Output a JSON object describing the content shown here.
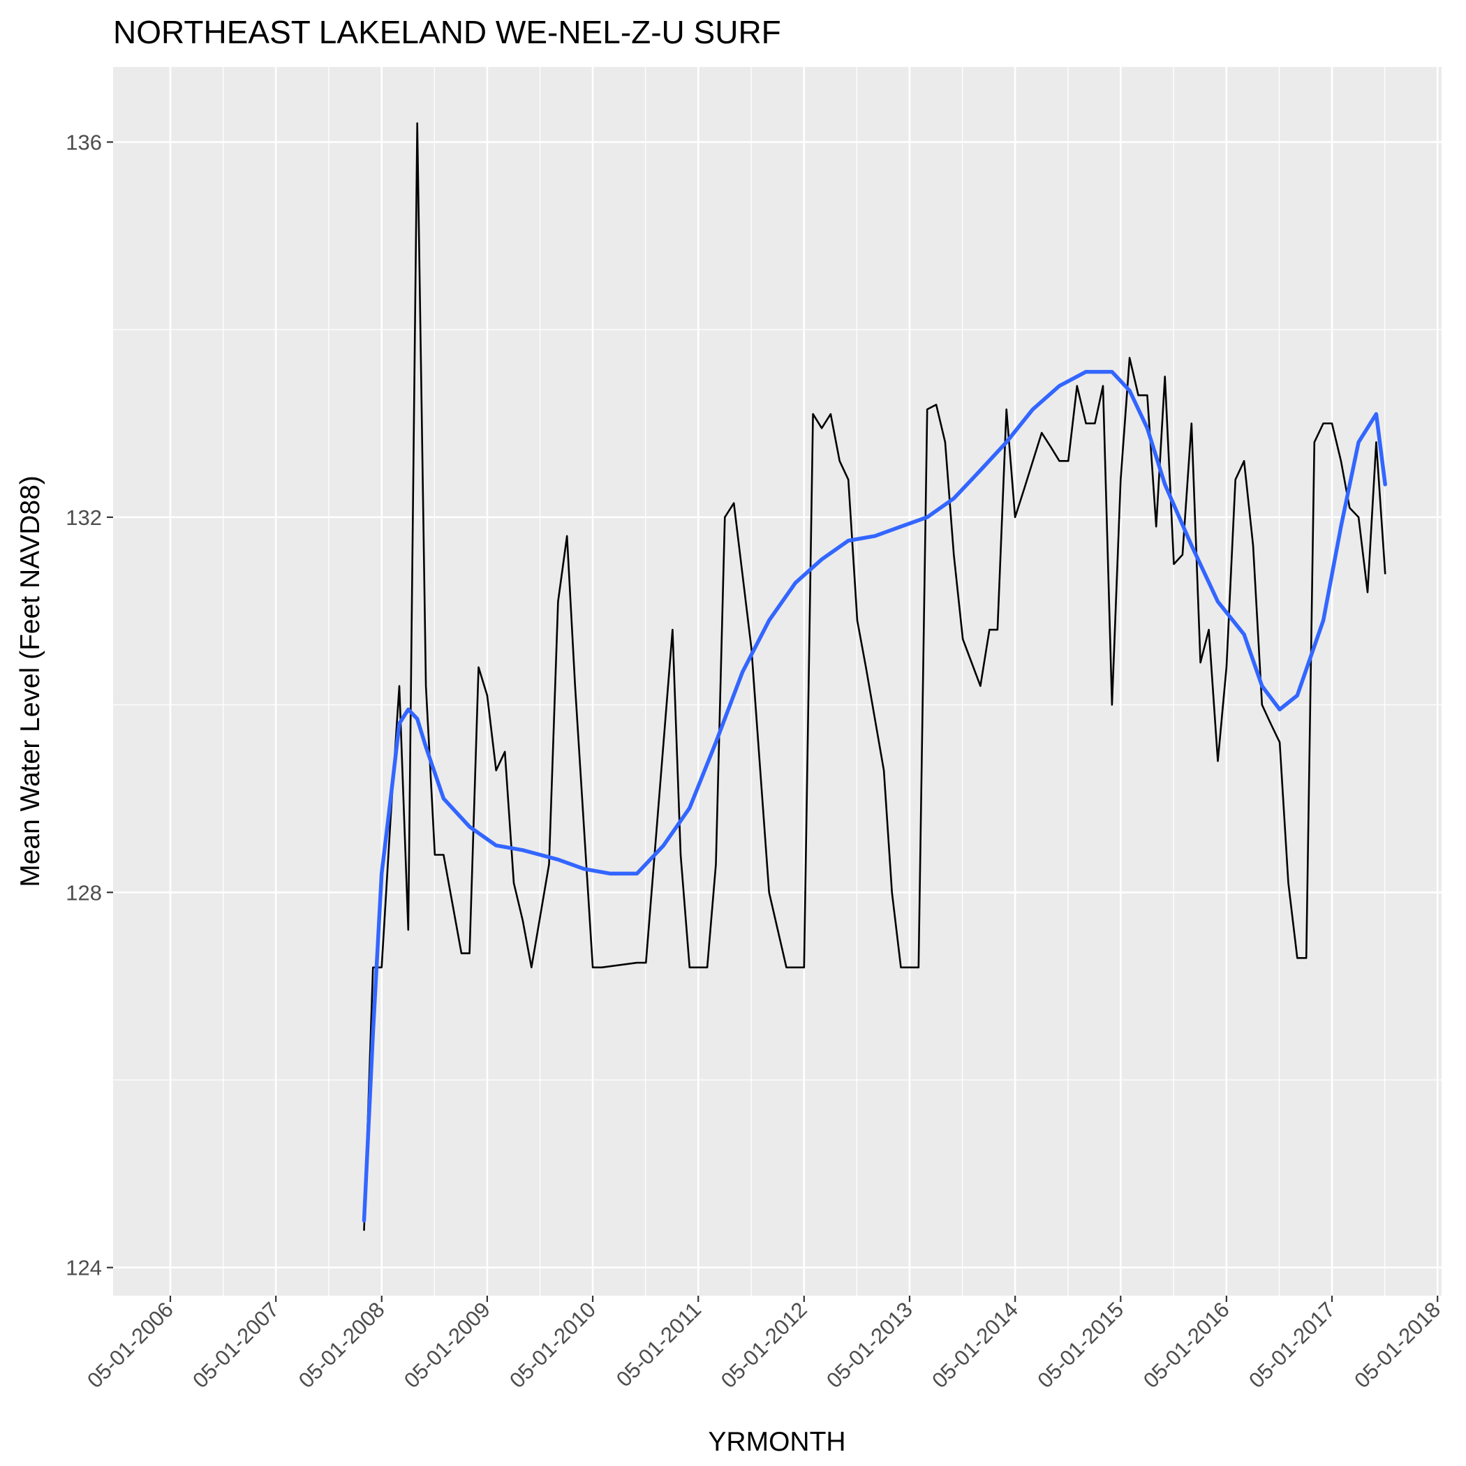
{
  "chart_data": {
    "type": "line",
    "title": "NORTHEAST LAKELAND WE-NEL-Z-U SURF",
    "xlabel": "YRMONTH",
    "ylabel": "Mean Water Level (Feet NAVD88)",
    "xlim": [
      "2005-10-15",
      "2018-05-15"
    ],
    "ylim": [
      123.7,
      136.8
    ],
    "x_ticks": [
      "05-01-2006",
      "05-01-2007",
      "05-01-2008",
      "05-01-2009",
      "05-01-2010",
      "05-01-2011",
      "05-01-2012",
      "05-01-2013",
      "05-01-2014",
      "05-01-2015",
      "05-01-2016",
      "05-01-2017",
      "05-01-2018"
    ],
    "y_ticks": [
      124,
      128,
      132,
      136
    ],
    "grid": true,
    "colors": {
      "panel": "#ebebeb",
      "grid": "#ffffff",
      "series": "#000000",
      "smooth": "#3366ff"
    },
    "series": [
      {
        "style": "line",
        "x": [
          "2008-03-01",
          "2008-04-01",
          "2008-05-01",
          "2008-06-01",
          "2008-07-01",
          "2008-08-01",
          "2008-09-01",
          "2008-10-01",
          "2008-11-01",
          "2008-12-01",
          "2009-02-01",
          "2009-03-01",
          "2009-04-01",
          "2009-05-01",
          "2009-06-01",
          "2009-07-01",
          "2009-08-01",
          "2009-09-01",
          "2009-10-01",
          "2009-12-01",
          "2010-01-01",
          "2010-02-01",
          "2010-03-01",
          "2010-05-01",
          "2010-06-01",
          "2010-10-01",
          "2010-11-01",
          "2011-02-01",
          "2011-03-01",
          "2011-04-01",
          "2011-06-01",
          "2011-07-01",
          "2011-08-01",
          "2011-09-01",
          "2011-11-01",
          "2012-01-01",
          "2012-03-01",
          "2012-05-01",
          "2012-06-01",
          "2012-07-01",
          "2012-08-01",
          "2012-09-01",
          "2012-10-01",
          "2012-11-01",
          "2012-12-01",
          "2013-02-01",
          "2013-03-01",
          "2013-04-01",
          "2013-06-01",
          "2013-07-01",
          "2013-08-01",
          "2013-09-01",
          "2013-10-01",
          "2013-11-01",
          "2014-01-01",
          "2014-02-01",
          "2014-03-01",
          "2014-04-01",
          "2014-05-01",
          "2014-06-01",
          "2014-08-01",
          "2014-09-01",
          "2014-10-01",
          "2014-11-01",
          "2014-12-01",
          "2015-01-01",
          "2015-02-01",
          "2015-03-01",
          "2015-04-01",
          "2015-05-01",
          "2015-06-01",
          "2015-07-01",
          "2015-08-01",
          "2015-09-01",
          "2015-10-01",
          "2015-11-01",
          "2015-12-01",
          "2016-01-01",
          "2016-02-01",
          "2016-03-01",
          "2016-04-01",
          "2016-05-01",
          "2016-06-01",
          "2016-07-01",
          "2016-08-01",
          "2016-09-01",
          "2016-10-01",
          "2016-11-01",
          "2016-12-01",
          "2017-01-01",
          "2017-02-01",
          "2017-03-01",
          "2017-04-01",
          "2017-05-01",
          "2017-06-01",
          "2017-07-01",
          "2017-08-01",
          "2017-09-01",
          "2017-10-01",
          "2017-11-01"
        ],
        "values": [
          124.4,
          127.2,
          127.2,
          128.8,
          130.2,
          127.6,
          136.2,
          130.2,
          128.4,
          128.4,
          127.35,
          127.35,
          130.4,
          130.1,
          129.3,
          129.5,
          128.1,
          127.7,
          127.2,
          128.3,
          131.1,
          131.8,
          130.2,
          127.2,
          127.2,
          127.25,
          127.25,
          130.8,
          128.4,
          127.2,
          127.2,
          128.3,
          132.0,
          132.15,
          130.6,
          128.0,
          127.2,
          127.2,
          133.1,
          132.95,
          133.1,
          132.6,
          132.4,
          130.9,
          130.4,
          129.3,
          128.0,
          127.2,
          127.2,
          133.15,
          133.2,
          132.8,
          131.6,
          130.7,
          130.2,
          130.8,
          130.8,
          133.15,
          132.0,
          132.3,
          132.9,
          132.75,
          132.6,
          132.6,
          133.4,
          133.0,
          133.0,
          133.4,
          130.0,
          132.4,
          133.7,
          133.3,
          133.3,
          131.9,
          133.5,
          131.5,
          131.6,
          133.0,
          130.45,
          130.8,
          129.4,
          130.4,
          132.4,
          132.6,
          131.7,
          130.0,
          129.8,
          129.6,
          128.1,
          127.3,
          127.3,
          132.8,
          133.0,
          133.0,
          132.6,
          132.1,
          132.0,
          131.2,
          132.8,
          131.4
        ],
        "x_hidden_note_removed": null
      },
      {
        "style": "smooth",
        "x": [
          "2008-03-01",
          "2008-04-01",
          "2008-05-01",
          "2008-06-01",
          "2008-07-01",
          "2008-08-01",
          "2008-09-01",
          "2008-10-01",
          "2008-12-01",
          "2009-03-01",
          "2009-06-01",
          "2009-09-01",
          "2010-01-01",
          "2010-04-01",
          "2010-07-01",
          "2010-10-01",
          "2011-01-01",
          "2011-04-01",
          "2011-07-01",
          "2011-10-01",
          "2012-01-01",
          "2012-04-01",
          "2012-07-01",
          "2012-10-01",
          "2013-01-01",
          "2013-04-01",
          "2013-07-01",
          "2013-10-01",
          "2014-01-01",
          "2014-04-01",
          "2014-07-01",
          "2014-10-01",
          "2015-01-01",
          "2015-04-01",
          "2015-06-01",
          "2015-08-01",
          "2015-10-01",
          "2016-01-01",
          "2016-04-01",
          "2016-07-01",
          "2016-09-01",
          "2016-11-01",
          "2017-01-01",
          "2017-04-01",
          "2017-06-01",
          "2017-08-01",
          "2017-10-01",
          "2017-11-01"
        ],
        "values": [
          124.5,
          126.5,
          128.2,
          129.0,
          129.8,
          129.95,
          129.85,
          129.55,
          129.0,
          128.7,
          128.5,
          128.45,
          128.35,
          128.25,
          128.2,
          128.2,
          128.5,
          128.9,
          129.6,
          130.35,
          130.9,
          131.3,
          131.55,
          131.75,
          131.8,
          131.9,
          132.0,
          132.2,
          132.5,
          132.8,
          133.15,
          133.4,
          133.55,
          133.55,
          133.35,
          132.95,
          132.35,
          131.7,
          131.1,
          130.75,
          130.2,
          129.95,
          130.1,
          130.9,
          131.9,
          132.8,
          133.1,
          132.35
        ]
      }
    ]
  }
}
